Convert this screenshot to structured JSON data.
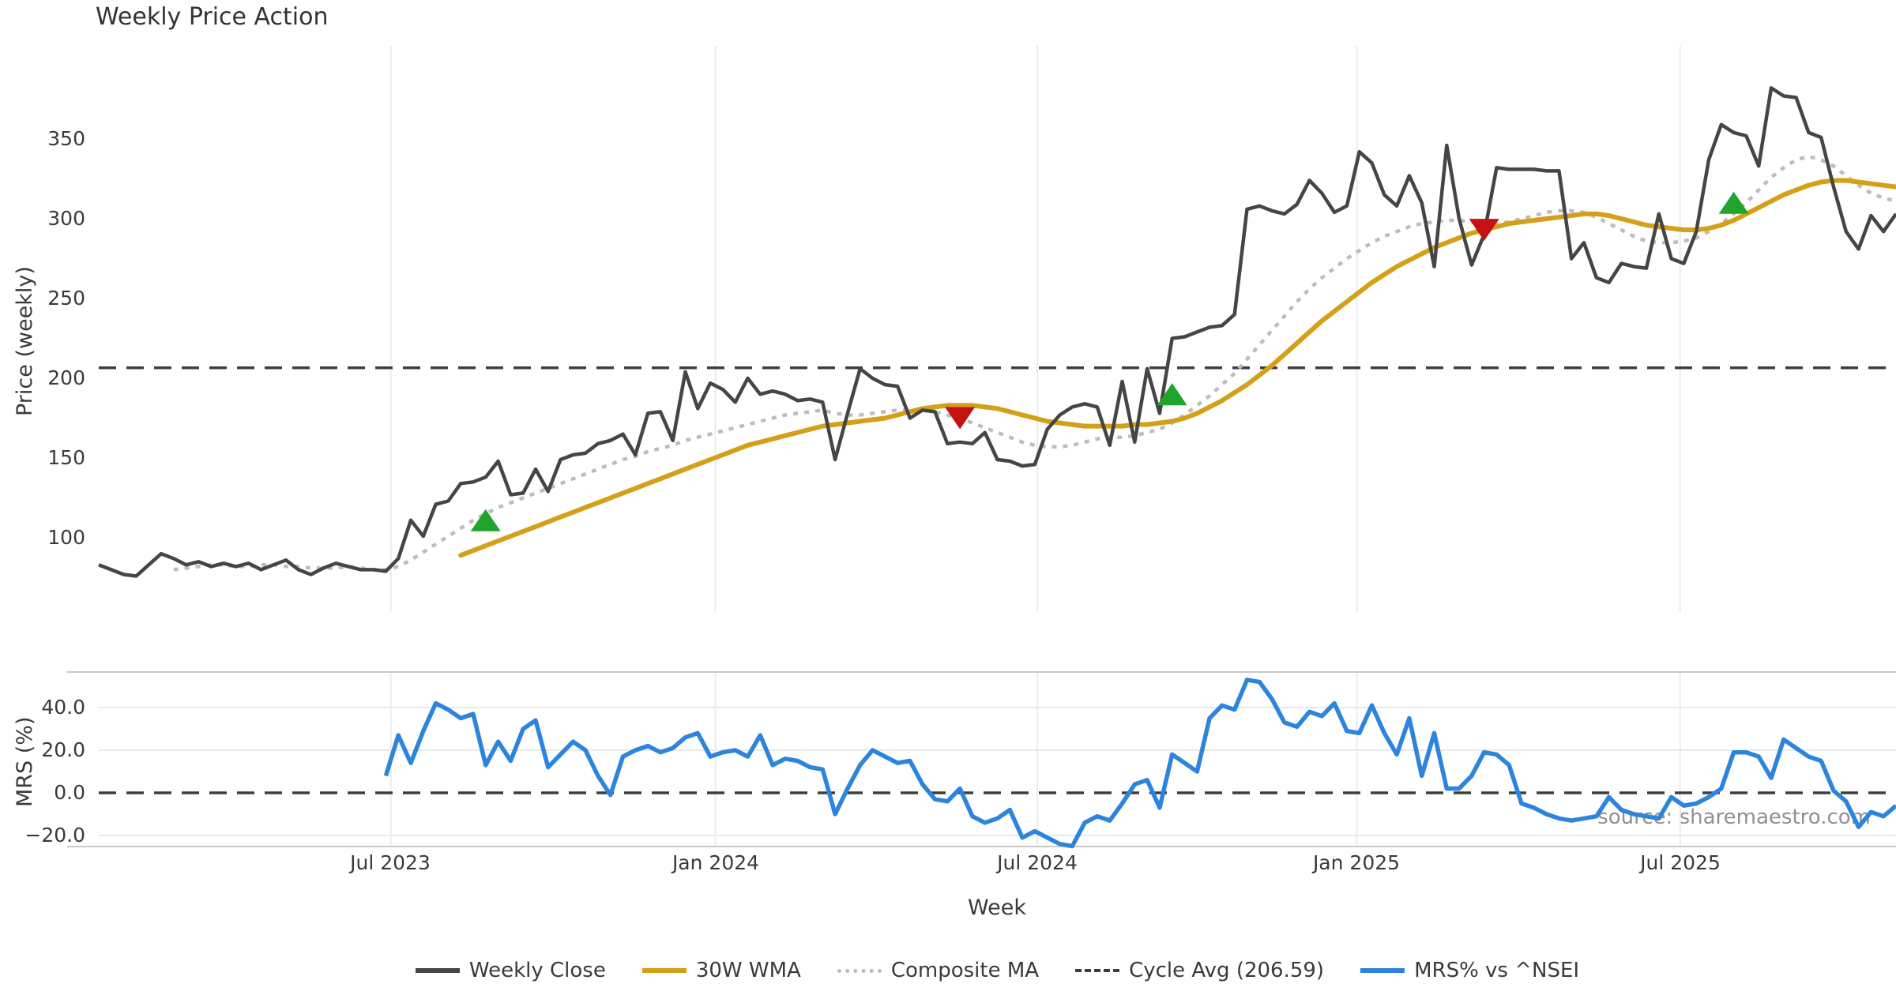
{
  "labels": {
    "title": "Weekly Price Action",
    "xlabel": "Week",
    "price_ylabel": "Price (weekly)",
    "mrs_ylabel": "MRS (%)",
    "source": "source: sharemaestro.com",
    "price_ticks": [
      "350",
      "300",
      "250",
      "200",
      "150",
      "100"
    ],
    "mrs_ticks": [
      "40.0",
      "20.0",
      "0.0",
      "−20.0"
    ],
    "x_ticks": [
      "Jul 2023",
      "Jan 2024",
      "Jul 2024",
      "Jan 2025",
      "Jul 2025"
    ],
    "legend": [
      "Weekly Close",
      "30W WMA",
      "Composite MA",
      "Cycle Avg (206.59)",
      "MRS% vs ^NSEI"
    ]
  },
  "colors": {
    "close": "#454545",
    "wma": "#d4a019",
    "composite": "#bdbdbd",
    "cycle": "#3d3d3d",
    "mrs": "#2d84dd",
    "buy": "#1fa42c",
    "sell": "#c51111",
    "grid": "#ebebee",
    "mrs_hgrid": "#e9e9e9",
    "panel_border": "#c9c9c9",
    "text": "#3a3a3a",
    "source_text": "#909090"
  },
  "chart_data": [
    {
      "type": "line",
      "panel": "price",
      "title": "Weekly Price Action",
      "xlabel": "Week",
      "ylabel": "Price (weekly)",
      "x_unit": "week_index_from_mid_feb_2023",
      "x_ticks": [
        {
          "label": "Jul 2023",
          "week": 23.4
        },
        {
          "label": "Jan 2024",
          "week": 49.4
        },
        {
          "label": "Jul 2024",
          "week": 75.2
        },
        {
          "label": "Jan 2025",
          "week": 100.8
        },
        {
          "label": "Jul 2025",
          "week": 126.7
        }
      ],
      "ylim": [
        55,
        405
      ],
      "yticks": [
        100,
        150,
        200,
        250,
        300,
        350
      ],
      "grid": "vertical-only",
      "legend_position": "bottom-center",
      "series": [
        {
          "name": "Weekly Close",
          "style": "solid",
          "color": "#454545",
          "values": [
            83,
            80,
            77,
            76,
            83,
            90,
            87,
            83,
            85,
            82,
            84,
            82,
            84,
            80,
            83,
            86,
            80,
            77,
            81,
            84,
            82,
            80,
            80,
            79,
            87,
            111,
            101,
            121,
            123,
            134,
            135,
            138,
            148,
            127,
            128,
            143,
            129,
            149,
            152,
            153,
            159,
            161,
            165,
            152,
            178,
            179,
            161,
            204,
            181,
            197,
            193,
            185,
            200,
            190,
            192,
            190,
            186,
            187,
            185,
            149,
            178,
            206,
            200,
            196,
            195,
            175,
            180,
            179,
            159,
            160,
            159,
            166,
            149,
            148,
            145,
            146,
            168,
            177,
            182,
            184,
            182,
            158,
            198,
            160,
            206,
            178,
            225,
            226,
            229,
            232,
            233,
            240,
            306,
            308,
            305,
            303,
            309,
            324,
            316,
            304,
            308,
            342,
            335,
            315,
            308,
            327,
            310,
            270,
            346,
            300,
            271,
            290,
            332,
            331,
            331,
            331,
            330,
            330,
            275,
            285,
            263,
            260,
            272,
            270,
            269,
            303,
            275,
            272,
            292,
            337,
            359,
            354,
            352,
            333,
            382,
            377,
            376,
            354,
            351,
            320,
            292,
            281,
            302,
            292,
            303
          ]
        },
        {
          "name": "30W WMA",
          "style": "solid",
          "color": "#d4a019",
          "values": [
            null,
            null,
            null,
            null,
            null,
            null,
            null,
            null,
            null,
            null,
            null,
            null,
            null,
            null,
            null,
            null,
            null,
            null,
            null,
            null,
            null,
            null,
            null,
            null,
            null,
            null,
            null,
            null,
            null,
            89,
            92,
            95,
            98,
            101,
            104,
            107,
            110,
            113,
            116,
            119,
            122,
            125,
            128,
            131,
            134,
            137,
            140,
            143,
            146,
            149,
            152,
            155,
            158,
            160,
            162,
            164,
            166,
            168,
            170,
            171,
            172,
            173,
            174,
            175,
            177,
            179,
            181,
            182,
            183,
            183,
            183,
            182,
            181,
            179,
            177,
            175,
            173,
            172,
            171,
            170,
            170,
            170,
            170,
            171,
            171,
            172,
            173,
            175,
            178,
            182,
            186,
            191,
            196,
            202,
            208,
            215,
            222,
            229,
            236,
            242,
            248,
            254,
            260,
            265,
            270,
            274,
            278,
            282,
            285,
            288,
            291,
            293,
            295,
            297,
            298,
            299,
            300,
            301,
            302,
            303,
            303,
            302,
            300,
            298,
            296,
            295,
            294,
            293,
            293,
            294,
            296,
            299,
            303,
            307,
            311,
            315,
            318,
            321,
            323,
            324,
            324,
            323,
            322,
            321,
            320
          ]
        },
        {
          "name": "Composite MA",
          "style": "dotted",
          "color": "#bdbdbd",
          "values": [
            null,
            null,
            null,
            null,
            null,
            null,
            80,
            81,
            82,
            83,
            83,
            82,
            82,
            83,
            83,
            82,
            82,
            81,
            81,
            81,
            82,
            81,
            80,
            80,
            82,
            86,
            91,
            96,
            101,
            106,
            111,
            115,
            119,
            122,
            125,
            128,
            131,
            134,
            137,
            140,
            143,
            146,
            149,
            151,
            154,
            156,
            158,
            161,
            163,
            165,
            167,
            169,
            171,
            173,
            175,
            177,
            178,
            179,
            180,
            178,
            177,
            177,
            178,
            179,
            180,
            180,
            180,
            179,
            177,
            175,
            172,
            169,
            166,
            163,
            160,
            158,
            157,
            157,
            158,
            160,
            162,
            163,
            163,
            164,
            166,
            168,
            172,
            177,
            183,
            189,
            196,
            203,
            212,
            221,
            230,
            239,
            248,
            256,
            263,
            269,
            275,
            280,
            285,
            289,
            292,
            295,
            297,
            298,
            299,
            299,
            298,
            297,
            297,
            298,
            300,
            302,
            304,
            305,
            305,
            304,
            301,
            297,
            293,
            289,
            286,
            285,
            285,
            286,
            288,
            292,
            297,
            303,
            310,
            318,
            326,
            332,
            337,
            339,
            337,
            333,
            327,
            321,
            316,
            313,
            311
          ]
        },
        {
          "name": "Cycle Avg",
          "style": "dashed",
          "color": "#3d3d3d",
          "value": 206.59
        }
      ],
      "markers": [
        {
          "week": 31,
          "price": 111,
          "type": "buy"
        },
        {
          "week": 69,
          "price": 175,
          "type": "sell"
        },
        {
          "week": 86,
          "price": 190,
          "type": "buy"
        },
        {
          "week": 111,
          "price": 293,
          "type": "sell"
        },
        {
          "week": 131,
          "price": 310,
          "type": "buy"
        }
      ]
    },
    {
      "type": "line",
      "panel": "mrs",
      "ylabel": "MRS (%)",
      "ylim": [
        -25,
        57
      ],
      "yticks": [
        -20,
        0,
        20,
        40
      ],
      "zero_line_dashed": true,
      "grid": "both",
      "series": [
        {
          "name": "MRS% vs ^NSEI",
          "style": "solid",
          "color": "#2d84dd",
          "values": [
            null,
            null,
            null,
            null,
            null,
            null,
            null,
            null,
            null,
            null,
            null,
            null,
            null,
            null,
            null,
            null,
            null,
            null,
            null,
            null,
            null,
            null,
            null,
            8,
            27,
            14,
            29,
            42,
            39,
            35,
            37,
            13,
            24,
            15,
            30,
            34,
            12,
            18,
            24,
            20,
            8,
            -1,
            17,
            20,
            22,
            19,
            21,
            26,
            28,
            17,
            19,
            20,
            17,
            27,
            13,
            16,
            15,
            12,
            11,
            -10,
            2,
            13,
            20,
            17,
            14,
            15,
            4,
            -3,
            -4,
            2,
            -11,
            -14,
            -12,
            -8,
            -21,
            -18,
            -21,
            -24,
            -25,
            -14,
            -11,
            -13,
            -5,
            4,
            6,
            -7,
            18,
            14,
            10,
            35,
            41,
            39,
            53,
            52,
            44,
            33,
            31,
            38,
            36,
            42,
            29,
            28,
            41,
            28,
            18,
            35,
            8,
            28,
            2,
            2,
            8,
            19,
            18,
            13,
            -5,
            -7,
            -10,
            -12,
            -13,
            -12,
            -11,
            -2,
            -8,
            -10,
            -11,
            -12,
            -2,
            -6,
            -5,
            -2,
            2,
            19,
            19,
            17,
            7,
            25,
            21,
            17,
            15,
            1,
            -4,
            -16,
            -9,
            -11,
            -6
          ]
        }
      ]
    }
  ]
}
